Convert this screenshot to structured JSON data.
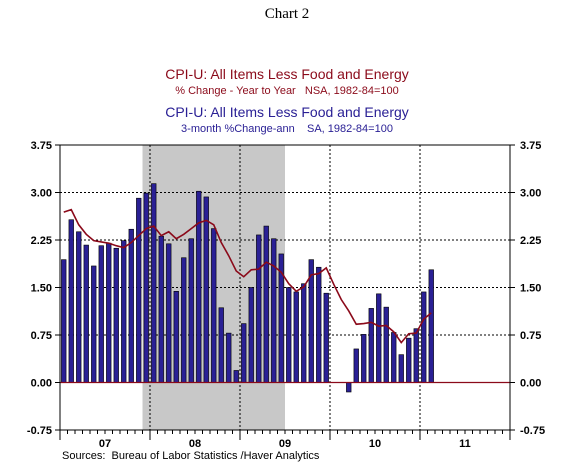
{
  "chart_data": {
    "type": "bar",
    "caption": "Chart 2",
    "legend": [
      {
        "line1": "CPI-U: All Items Less Food and Energy",
        "line2": "% Change - Year to Year   NSA, 1982-84=100",
        "color": "#8b0a1a",
        "mark": "line"
      },
      {
        "line1": "CPI-U: All Items Less Food and Energy",
        "line2": "3-month %Change-ann    SA, 1982-84=100",
        "color": "#2a2095",
        "mark": "bar"
      }
    ],
    "ylim": [
      -0.75,
      3.75
    ],
    "yticks": [
      "3.75",
      "3.00",
      "2.25",
      "1.50",
      "0.75",
      "0.00",
      "-0.75"
    ],
    "x_year_labels": [
      "07",
      "08",
      "09",
      "10",
      "11"
    ],
    "recession": {
      "start": "2007-12",
      "end": "2009-06"
    },
    "series": [
      {
        "name": "3-month %Change-ann",
        "type": "bar",
        "color": "#2a2095",
        "x": [
          "2007-01",
          "2007-02",
          "2007-03",
          "2007-04",
          "2007-05",
          "2007-06",
          "2007-07",
          "2007-08",
          "2007-09",
          "2007-10",
          "2007-11",
          "2007-12",
          "2008-01",
          "2008-02",
          "2008-03",
          "2008-04",
          "2008-05",
          "2008-06",
          "2008-07",
          "2008-08",
          "2008-09",
          "2008-10",
          "2008-11",
          "2008-12",
          "2009-01",
          "2009-02",
          "2009-03",
          "2009-04",
          "2009-05",
          "2009-06",
          "2009-07",
          "2009-08",
          "2009-09",
          "2009-10",
          "2009-11",
          "2009-12",
          "2010-01",
          "2010-02",
          "2010-03",
          "2010-04",
          "2010-05",
          "2010-06",
          "2010-07",
          "2010-08",
          "2010-09",
          "2010-10",
          "2010-11",
          "2010-12",
          "2011-01",
          "2011-02"
        ],
        "values": [
          1.94,
          2.57,
          2.38,
          2.17,
          1.84,
          2.16,
          2.2,
          2.12,
          2.24,
          2.42,
          2.91,
          2.99,
          3.14,
          2.31,
          2.19,
          1.44,
          1.97,
          2.27,
          3.02,
          2.93,
          2.43,
          1.18,
          0.78,
          0.19,
          0.93,
          1.5,
          2.33,
          2.47,
          2.27,
          2.03,
          1.5,
          1.43,
          1.56,
          1.94,
          1.82,
          1.41,
          0.0,
          0.0,
          -0.15,
          0.53,
          0.76,
          1.17,
          1.4,
          1.19,
          0.79,
          0.44,
          0.7,
          0.85,
          1.43,
          1.78
        ]
      },
      {
        "name": "% Change - Year to Year",
        "type": "line",
        "color": "#8b0a1a",
        "x": [
          "2007-01",
          "2007-02",
          "2007-03",
          "2007-04",
          "2007-05",
          "2007-06",
          "2007-07",
          "2007-08",
          "2007-09",
          "2007-10",
          "2007-11",
          "2007-12",
          "2008-01",
          "2008-02",
          "2008-03",
          "2008-04",
          "2008-05",
          "2008-06",
          "2008-07",
          "2008-08",
          "2008-09",
          "2008-10",
          "2008-11",
          "2008-12",
          "2009-01",
          "2009-02",
          "2009-03",
          "2009-04",
          "2009-05",
          "2009-06",
          "2009-07",
          "2009-08",
          "2009-09",
          "2009-10",
          "2009-11",
          "2009-12",
          "2010-01",
          "2010-02",
          "2010-03",
          "2010-04",
          "2010-05",
          "2010-06",
          "2010-07",
          "2010-08",
          "2010-09",
          "2010-10",
          "2010-11",
          "2010-12",
          "2011-01",
          "2011-02"
        ],
        "values": [
          2.69,
          2.73,
          2.49,
          2.34,
          2.24,
          2.22,
          2.2,
          2.16,
          2.13,
          2.21,
          2.32,
          2.43,
          2.47,
          2.32,
          2.38,
          2.27,
          2.34,
          2.43,
          2.52,
          2.56,
          2.49,
          2.21,
          2.0,
          1.76,
          1.67,
          1.78,
          1.79,
          1.9,
          1.84,
          1.74,
          1.56,
          1.44,
          1.51,
          1.7,
          1.72,
          1.81,
          1.55,
          1.31,
          1.13,
          0.92,
          0.93,
          0.95,
          0.89,
          0.9,
          0.8,
          0.63,
          0.77,
          0.78,
          1.0,
          1.1
        ]
      }
    ],
    "source": "Sources:  Bureau of Labor Statistics /Haver Analytics"
  }
}
